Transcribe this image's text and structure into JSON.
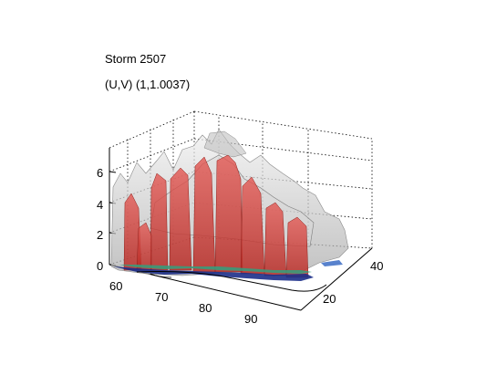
{
  "figure": {
    "title_line1": "Storm 2507",
    "title_line2": "(U,V) (1,1.0037)"
  },
  "chart_data": {
    "type": "3d-isosurface",
    "title": "Storm 2507",
    "subtitle": "(U,V) (1,1.0037)",
    "xlabel": "",
    "ylabel": "",
    "zlabel": "",
    "x_ticks": [
      "60",
      "70",
      "80",
      "90"
    ],
    "y_ticks": [
      "20",
      "40"
    ],
    "z_ticks": [
      "0",
      "2",
      "4",
      "6"
    ],
    "xlim": [
      58,
      97
    ],
    "ylim": [
      8,
      46
    ],
    "zlim": [
      0,
      7
    ],
    "grid": true,
    "surfaces": [
      {
        "color": "#c8c8c8",
        "opacity": 0.55
      },
      {
        "color": "#d9342e",
        "opacity": 0.65
      },
      {
        "color": "#3a9a7a",
        "opacity": 0.85
      },
      {
        "color": "#1c2f8a",
        "opacity": 0.9
      }
    ]
  }
}
